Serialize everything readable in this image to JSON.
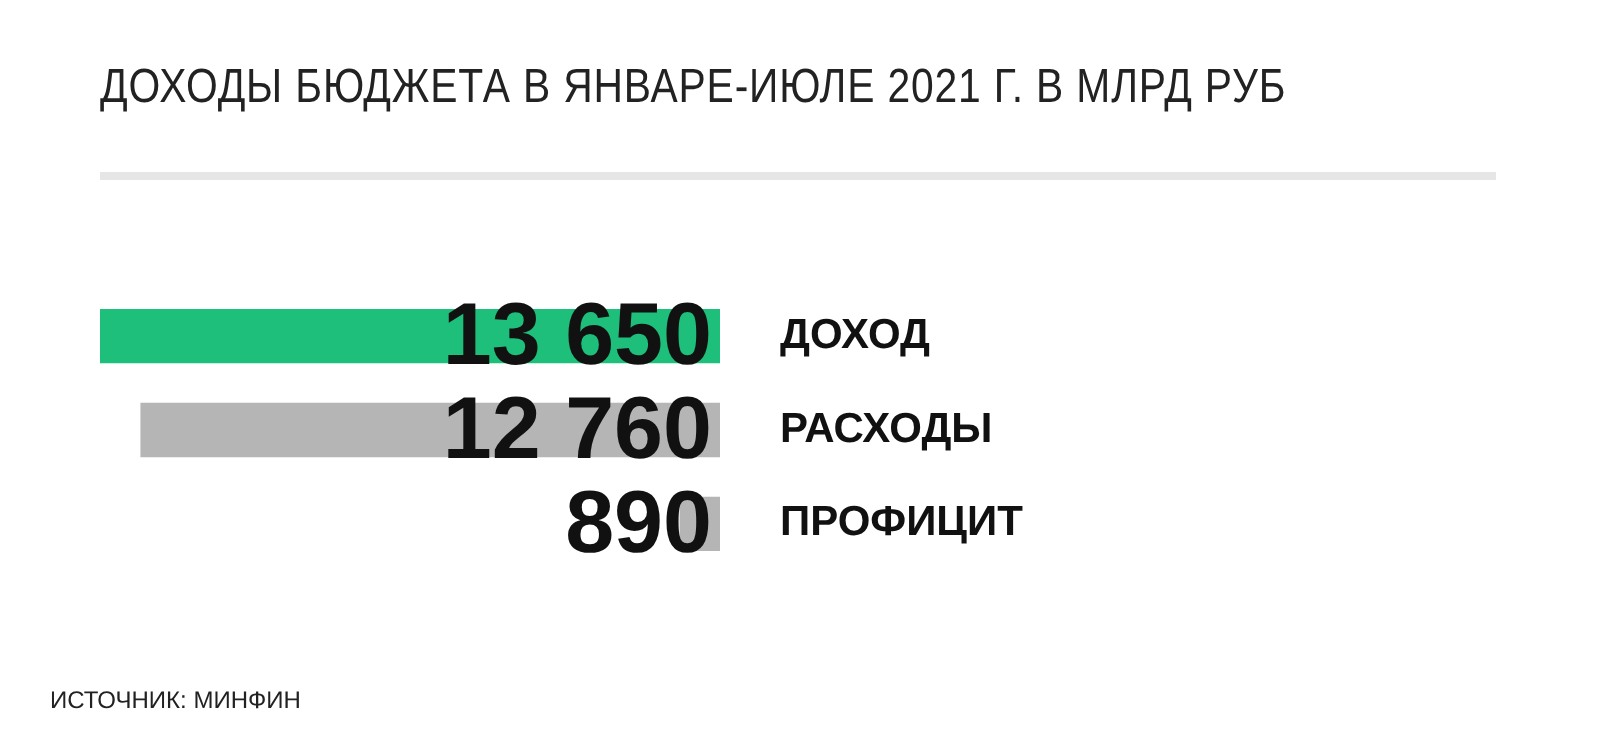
{
  "chart_data": {
    "type": "bar",
    "orientation": "horizontal",
    "title": "ДОХОДЫ БЮДЖЕТА В ЯНВАРЕ-ИЮЛЕ 2021 Г. В МЛРД РУБ",
    "categories": [
      "ДОХОД",
      "РАСХОДЫ",
      "ПРОФИЦИТ"
    ],
    "values": [
      13650,
      12760,
      890
    ],
    "colors": [
      "#1dbf7a",
      "#b5b5b5",
      "#b5b5b5"
    ],
    "value_labels": [
      "13 650",
      "12 760",
      "890"
    ],
    "xlim": [
      13650,
      0
    ],
    "tick_labels": "y",
    "grid": false,
    "legend": false,
    "annotations": [
      "ИСТОЧНИК: МИНФИН"
    ]
  }
}
